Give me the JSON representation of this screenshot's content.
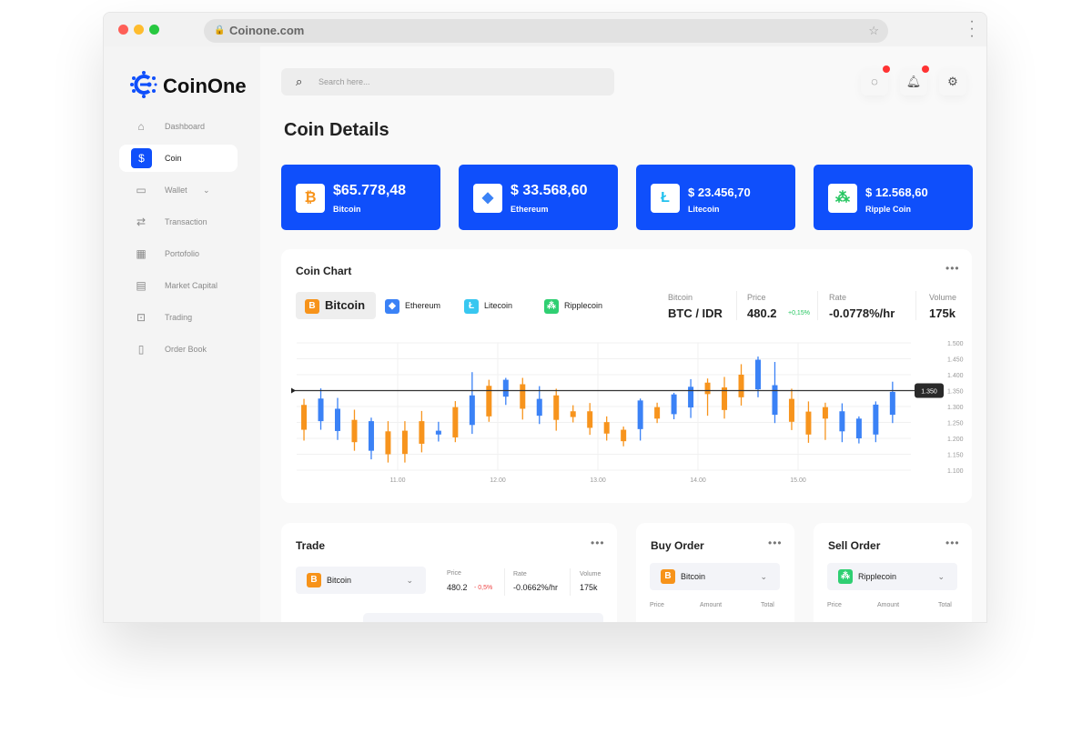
{
  "browser": {
    "url": "Coinone.com",
    "dots": [
      "#fe5f57",
      "#febc2e",
      "#28c840"
    ]
  },
  "brand": {
    "name": "CoinOne",
    "color": "#0f4ffb"
  },
  "sidebar": {
    "items": [
      {
        "label": "Dashboard",
        "icon": "home-icon"
      },
      {
        "label": "Coin",
        "icon": "dollar-coin-icon",
        "active": true
      },
      {
        "label": "Wallet",
        "icon": "wallet-icon",
        "has_dropdown": true
      },
      {
        "label": "Transaction",
        "icon": "transfer-icon"
      },
      {
        "label": "Portofolio",
        "icon": "briefcase-icon"
      },
      {
        "label": "Market Capital",
        "icon": "store-icon"
      },
      {
        "label": "Trading",
        "icon": "presentation-chart-icon"
      },
      {
        "label": "Order Book",
        "icon": "book-icon"
      }
    ]
  },
  "header": {
    "search_placeholder": "Search here...",
    "page_title": "Coin Details"
  },
  "cards": [
    {
      "value": "$65.778,48",
      "name": "Bitcoin",
      "icon": "bitcoin-icon",
      "icon_color": "#f7931a"
    },
    {
      "value": "$ 33.568,60",
      "name": "Ethereum",
      "icon": "ethereum-icon",
      "icon_color": "#3b82f6"
    },
    {
      "value": "$ 23.456,70",
      "name": "Litecoin",
      "icon": "litecoin-icon",
      "icon_color": "#22c1ee"
    },
    {
      "value": "$ 12.568,60",
      "name": "Ripple Coin",
      "icon": "ripple-icon",
      "icon_color": "#22c55e"
    }
  ],
  "coin_chart": {
    "title": "Coin Chart",
    "tabs": [
      {
        "label": "Bitcoin",
        "active": true,
        "color": "#f7931a"
      },
      {
        "label": "Ethereum",
        "color": "#3b82f6"
      },
      {
        "label": "Litecoin",
        "color": "#38c7f0"
      },
      {
        "label": "Ripplecoin",
        "color": "#2fcf72"
      }
    ],
    "stats": {
      "pair_label": "Bitcoin",
      "pair": "BTC / IDR",
      "price_label": "Price",
      "price": "480.2",
      "price_change": "+0,15%",
      "rate_label": "Rate",
      "rate": "-0.0778%/hr",
      "volume_label": "Volume",
      "volume": "175k"
    }
  },
  "chart_data": {
    "type": "candlestick",
    "x_ticks": [
      "11.00",
      "12.00",
      "13.00",
      "14.00",
      "15.00"
    ],
    "y_ticks": [
      "1.500",
      "1.450",
      "1.400",
      "1.350",
      "1.300",
      "1.250",
      "1.200",
      "1.150",
      "1.100"
    ],
    "ylim": [
      1100,
      1500
    ],
    "grid": true,
    "current_price": 1350,
    "current_price_label": "1.350",
    "up_color": "#3b82f6",
    "down_color": "#f7941d",
    "candles": [
      {
        "o": 1305,
        "h": 1324,
        "l": 1193,
        "c": 1227
      },
      {
        "o": 1254,
        "h": 1357,
        "l": 1227,
        "c": 1325
      },
      {
        "o": 1223,
        "h": 1327,
        "l": 1195,
        "c": 1293
      },
      {
        "o": 1258,
        "h": 1290,
        "l": 1161,
        "c": 1188
      },
      {
        "o": 1161,
        "h": 1265,
        "l": 1134,
        "c": 1254
      },
      {
        "o": 1222,
        "h": 1254,
        "l": 1124,
        "c": 1150
      },
      {
        "o": 1224,
        "h": 1254,
        "l": 1124,
        "c": 1151
      },
      {
        "o": 1254,
        "h": 1286,
        "l": 1156,
        "c": 1183
      },
      {
        "o": 1212,
        "h": 1252,
        "l": 1190,
        "c": 1224
      },
      {
        "o": 1298,
        "h": 1317,
        "l": 1188,
        "c": 1203
      },
      {
        "o": 1242,
        "h": 1408,
        "l": 1214,
        "c": 1335
      },
      {
        "o": 1365,
        "h": 1384,
        "l": 1252,
        "c": 1269
      },
      {
        "o": 1331,
        "h": 1390,
        "l": 1305,
        "c": 1384
      },
      {
        "o": 1370,
        "h": 1390,
        "l": 1259,
        "c": 1293
      },
      {
        "o": 1271,
        "h": 1364,
        "l": 1245,
        "c": 1324
      },
      {
        "o": 1335,
        "h": 1356,
        "l": 1224,
        "c": 1258
      },
      {
        "o": 1285,
        "h": 1304,
        "l": 1250,
        "c": 1267
      },
      {
        "o": 1285,
        "h": 1311,
        "l": 1211,
        "c": 1233
      },
      {
        "o": 1251,
        "h": 1269,
        "l": 1193,
        "c": 1215
      },
      {
        "o": 1227,
        "h": 1237,
        "l": 1175,
        "c": 1191
      },
      {
        "o": 1229,
        "h": 1325,
        "l": 1193,
        "c": 1319
      },
      {
        "o": 1298,
        "h": 1312,
        "l": 1248,
        "c": 1262
      },
      {
        "o": 1276,
        "h": 1343,
        "l": 1260,
        "c": 1338
      },
      {
        "o": 1297,
        "h": 1386,
        "l": 1264,
        "c": 1362
      },
      {
        "o": 1375,
        "h": 1388,
        "l": 1271,
        "c": 1339
      },
      {
        "o": 1360,
        "h": 1393,
        "l": 1262,
        "c": 1289
      },
      {
        "o": 1400,
        "h": 1433,
        "l": 1303,
        "c": 1329
      },
      {
        "o": 1354,
        "h": 1457,
        "l": 1329,
        "c": 1447
      },
      {
        "o": 1274,
        "h": 1440,
        "l": 1248,
        "c": 1367
      },
      {
        "o": 1324,
        "h": 1356,
        "l": 1226,
        "c": 1252
      },
      {
        "o": 1284,
        "h": 1316,
        "l": 1186,
        "c": 1212
      },
      {
        "o": 1298,
        "h": 1312,
        "l": 1195,
        "c": 1262
      },
      {
        "o": 1222,
        "h": 1310,
        "l": 1188,
        "c": 1285
      },
      {
        "o": 1200,
        "h": 1269,
        "l": 1184,
        "c": 1262
      },
      {
        "o": 1212,
        "h": 1316,
        "l": 1188,
        "c": 1306
      },
      {
        "o": 1274,
        "h": 1378,
        "l": 1248,
        "c": 1346
      }
    ]
  },
  "trade": {
    "title": "Trade",
    "coin": "Bitcoin",
    "price_label": "Price",
    "price": "480.2",
    "price_change": "- 0,5%",
    "rate_label": "Rate",
    "rate": "-0.0662%/hr",
    "volume_label": "Volume",
    "volume": "175k"
  },
  "buy_order": {
    "title": "Buy Order",
    "coin": "Bitcoin",
    "columns": [
      "Price",
      "Amount",
      "Total"
    ]
  },
  "sell_order": {
    "title": "Sell Order",
    "coin": "Ripplecoin",
    "columns": [
      "Price",
      "Amount",
      "Total"
    ]
  }
}
